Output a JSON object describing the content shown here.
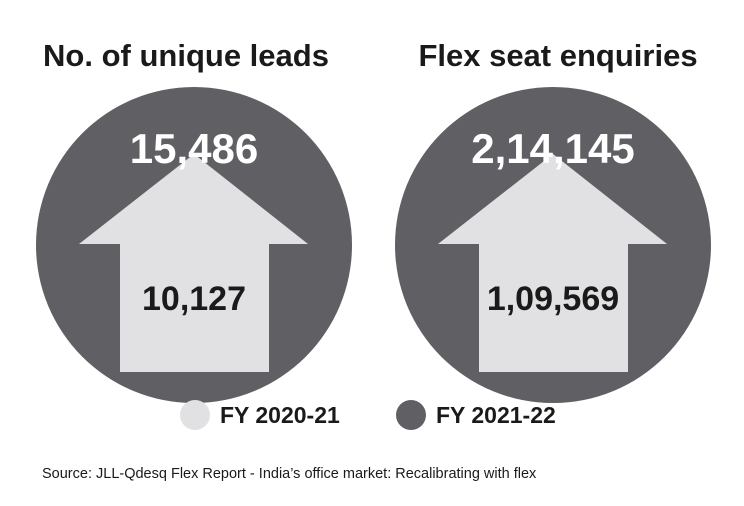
{
  "colors": {
    "fy2021_22": "#606064",
    "fy2020_21": "#e1e1e3",
    "text_dark": "#1a1a1a",
    "text_light": "#ffffff"
  },
  "chart_data": [
    {
      "type": "bar",
      "title": "No. of unique leads",
      "categories": [
        "FY 2020-21",
        "FY 2021-22"
      ],
      "values": [
        10127,
        15486
      ],
      "value_labels": [
        "10,127",
        "15,486"
      ]
    },
    {
      "type": "bar",
      "title": "Flex seat enquiries",
      "categories": [
        "FY 2020-21",
        "FY 2021-22"
      ],
      "values": [
        109569,
        214145
      ],
      "value_labels": [
        "1,09,569",
        "2,14,145"
      ]
    }
  ],
  "legend": [
    {
      "label": "FY 2020-21",
      "color": "#e1e1e3"
    },
    {
      "label": "FY 2021-22",
      "color": "#606064"
    }
  ],
  "source": "Source: JLL-Qdesq Flex Report - India’s office market: Recalibrating with flex"
}
